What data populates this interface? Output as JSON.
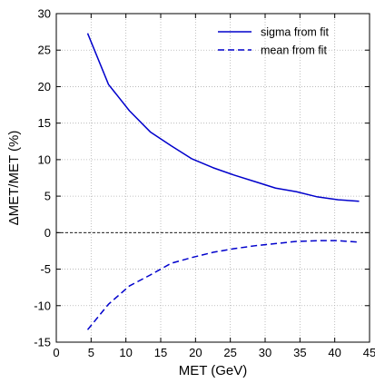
{
  "chart_data": {
    "type": "line",
    "title": "",
    "xlabel": "MET (GeV)",
    "ylabel": "ΔMET/MET (%)",
    "xlim": [
      0,
      45
    ],
    "ylim": [
      -15,
      30
    ],
    "xticks": [
      0,
      5,
      10,
      15,
      20,
      25,
      30,
      35,
      40,
      45
    ],
    "yticks": [
      -15,
      -10,
      -5,
      0,
      5,
      10,
      15,
      20,
      25,
      30
    ],
    "grid": true,
    "legend_position": "top-right",
    "reference_line": {
      "y": 0,
      "style": "dashed"
    },
    "series": [
      {
        "name": "sigma from fit",
        "line_style": "solid",
        "color": "#0000cc",
        "x": [
          4.5,
          7.5,
          10.5,
          13.5,
          16.5,
          19.5,
          22.5,
          25.5,
          28.5,
          31.5,
          34.5,
          37.5,
          40.5,
          43.5
        ],
        "y": [
          27.3,
          20.3,
          16.7,
          13.8,
          11.9,
          10.1,
          8.9,
          7.9,
          7.0,
          6.1,
          5.6,
          4.9,
          4.5,
          4.3
        ]
      },
      {
        "name": "mean from fit",
        "line_style": "dashed",
        "color": "#0000cc",
        "x": [
          4.5,
          7.5,
          10.5,
          13.5,
          16.5,
          19.5,
          22.5,
          25.5,
          28.5,
          31.5,
          34.5,
          37.5,
          40.5,
          43.5
        ],
        "y": [
          -13.3,
          -9.8,
          -7.3,
          -5.8,
          -4.2,
          -3.4,
          -2.7,
          -2.2,
          -1.8,
          -1.5,
          -1.2,
          -1.1,
          -1.1,
          -1.3
        ]
      }
    ]
  }
}
